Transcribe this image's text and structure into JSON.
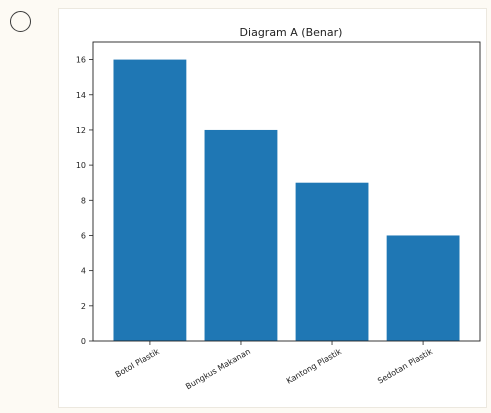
{
  "option": {
    "selected": false
  },
  "chart_data": {
    "type": "bar",
    "title": "Diagram A (Benar)",
    "xlabel": "",
    "ylabel": "",
    "categories": [
      "Botol Plastik",
      "Bungkus Makanan",
      "Kantong Plastik",
      "Sedotan Plastik"
    ],
    "values": [
      16,
      12,
      9,
      6
    ],
    "ylim": [
      0,
      17
    ],
    "yticks": [
      0,
      2,
      4,
      6,
      8,
      10,
      12,
      14,
      16
    ],
    "bar_color": "#1f77b4",
    "grid": false,
    "legend": "none"
  }
}
